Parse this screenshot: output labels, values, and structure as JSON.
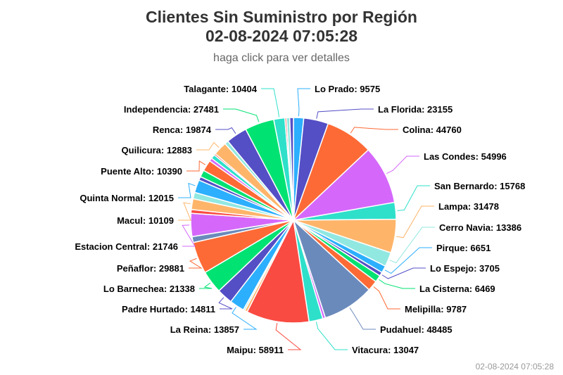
{
  "chart_data": {
    "type": "pie",
    "title": "Clientes Sin Suministro por Región",
    "title_line2": "02-08-2024 07:05:28",
    "subtitle": "haga click para ver detalles",
    "credit": "02-08-2024 07:05:28",
    "slices": [
      {
        "name": "Lo Prado",
        "value": 9575,
        "color": "#2caffe",
        "labeled": true
      },
      {
        "name": "La Florida",
        "value": 23155,
        "color": "#544fc5",
        "labeled": true
      },
      {
        "name": "Colina",
        "value": 44760,
        "color": "#fe6a35",
        "labeled": true
      },
      {
        "name": "Las Condes",
        "value": 54996,
        "color": "#d568fb",
        "labeled": true
      },
      {
        "name": "San Bernardo",
        "value": 15768,
        "color": "#2ee0ca",
        "labeled": true
      },
      {
        "name": "Lampa",
        "value": 31478,
        "color": "#feb56a",
        "labeled": true
      },
      {
        "name": "Cerro Navia",
        "value": 13386,
        "color": "#91e8e1",
        "labeled": true
      },
      {
        "name": "Pirque",
        "value": 6651,
        "color": "#2caffe",
        "labeled": true
      },
      {
        "name": "Lo Espejo",
        "value": 3705,
        "color": "#544fc5",
        "labeled": true
      },
      {
        "name": "La Cisterna",
        "value": 6469,
        "color": "#00e272",
        "labeled": true
      },
      {
        "name": "Melipilla",
        "value": 9787,
        "color": "#fe6a35",
        "labeled": true
      },
      {
        "name": "Pudahuel",
        "value": 48485,
        "color": "#6b8abc",
        "labeled": true
      },
      {
        "name": "",
        "value": 2500,
        "color": "#d568fb",
        "labeled": false
      },
      {
        "name": "Vitacura",
        "value": 13047,
        "color": "#2ee0ca",
        "labeled": true
      },
      {
        "name": "Maipu",
        "value": 58911,
        "color": "#fa4b42",
        "labeled": true
      },
      {
        "name": "",
        "value": 2500,
        "color": "#feb56a",
        "labeled": false
      },
      {
        "name": "",
        "value": 1500,
        "color": "#91e8e1",
        "labeled": false
      },
      {
        "name": "La Reina",
        "value": 13857,
        "color": "#2caffe",
        "labeled": true
      },
      {
        "name": "Padre Hurtado",
        "value": 14811,
        "color": "#544fc5",
        "labeled": true
      },
      {
        "name": "Lo Barnechea",
        "value": 21338,
        "color": "#00e272",
        "labeled": true
      },
      {
        "name": "Peñaflor",
        "value": 29881,
        "color": "#fe6a35",
        "labeled": true
      },
      {
        "name": "",
        "value": 5500,
        "color": "#6b8abc",
        "labeled": false
      },
      {
        "name": "Estacion Central",
        "value": 21746,
        "color": "#d568fb",
        "labeled": true
      },
      {
        "name": "",
        "value": 3500,
        "color": "#fa4b42",
        "labeled": false
      },
      {
        "name": "Macul",
        "value": 10109,
        "color": "#feb56a",
        "labeled": true
      },
      {
        "name": "",
        "value": 6000,
        "color": "#91e8e1",
        "labeled": false
      },
      {
        "name": "Quinta Normal",
        "value": 12015,
        "color": "#2caffe",
        "labeled": true
      },
      {
        "name": "",
        "value": 3500,
        "color": "#544fc5",
        "labeled": false
      },
      {
        "name": "",
        "value": 6500,
        "color": "#00e272",
        "labeled": false
      },
      {
        "name": "Puente Alto",
        "value": 10390,
        "color": "#fe6a35",
        "labeled": true
      },
      {
        "name": "",
        "value": 3000,
        "color": "#d568fb",
        "labeled": false
      },
      {
        "name": "",
        "value": 4000,
        "color": "#2ee0ca",
        "labeled": false
      },
      {
        "name": "",
        "value": 1500,
        "color": "#fa4b42",
        "labeled": false
      },
      {
        "name": "Quilicura",
        "value": 12883,
        "color": "#feb56a",
        "labeled": true
      },
      {
        "name": "",
        "value": 3500,
        "color": "#91e8e1",
        "labeled": false
      },
      {
        "name": "Renca",
        "value": 19874,
        "color": "#544fc5",
        "labeled": true
      },
      {
        "name": "Independencia",
        "value": 27481,
        "color": "#00e272",
        "labeled": true
      },
      {
        "name": "Talagante",
        "value": 10404,
        "color": "#2ee0ca",
        "labeled": true
      },
      {
        "name": "",
        "value": 1500,
        "color": "#fa4b42",
        "labeled": false
      },
      {
        "name": "",
        "value": 3000,
        "color": "#91e8e1",
        "labeled": false
      },
      {
        "name": "",
        "value": 3500,
        "color": "#544fc5",
        "labeled": false
      }
    ]
  }
}
